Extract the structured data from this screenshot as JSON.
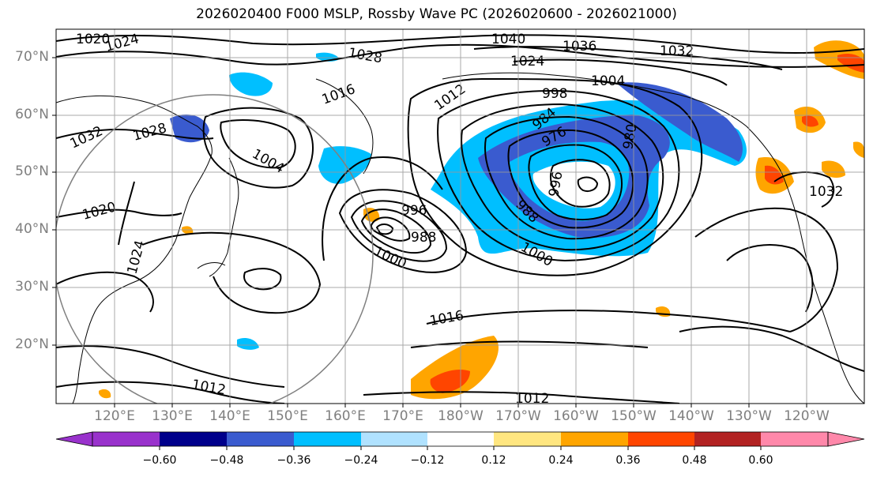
{
  "title": "2026020400 F000 MSLP, Rossby Wave PC (2026020600 - 2026021000)",
  "latitude_labels": [
    "70°N",
    "60°N",
    "50°N",
    "40°N",
    "30°N",
    "20°N"
  ],
  "longitude_labels": [
    "120°E",
    "130°E",
    "140°E",
    "150°E",
    "160°E",
    "170°E",
    "180°W",
    "170°W",
    "160°W",
    "150°W",
    "140°W",
    "130°W",
    "120°W"
  ],
  "isobar_labels": [
    "1020",
    "1024",
    "1028",
    "1040",
    "1036",
    "1032",
    "1024",
    "1004",
    "998",
    "1016",
    "1012",
    "1032",
    "1028",
    "1004",
    "984",
    "980",
    "976",
    "996",
    "1020",
    "1024",
    "996",
    "988",
    "1000",
    "1000",
    "988",
    "1016",
    "1012",
    "1012",
    "1032"
  ],
  "colorbar": {
    "tick_labels": [
      "−0.60",
      "−0.48",
      "−0.36",
      "−0.24",
      "−0.12",
      "0.12",
      "0.24",
      "0.36",
      "0.48",
      "0.60"
    ],
    "colors": [
      "#9932CC",
      "#00008B",
      "#3A5BCF",
      "#00BFFF",
      "#B0E2FF",
      "#FFFFFF",
      "#FFE680",
      "#FFA500",
      "#FF4500",
      "#B22222",
      "#FF88AA"
    ]
  }
}
